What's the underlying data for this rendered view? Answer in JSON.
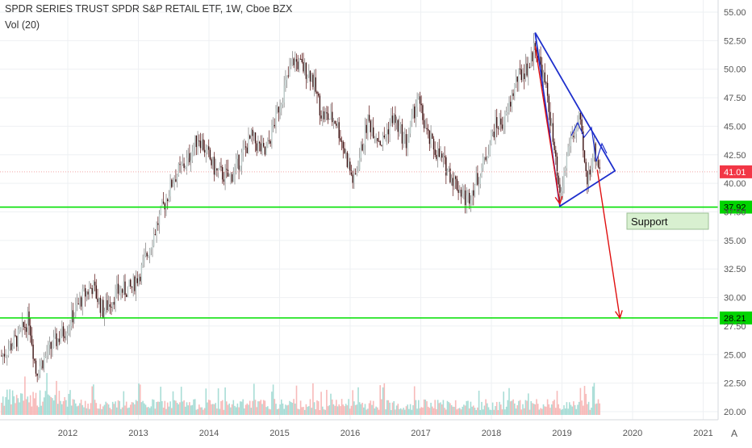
{
  "header": {
    "title": "SPDR SERIES TRUST SPDR S&P RETAIL ETF, 1W, Cboe BZX",
    "indicator": "Vol (20)"
  },
  "colors": {
    "up_candle": "#26a69a",
    "down_candle": "#ef5350",
    "volume_up": "#9fd9d2",
    "volume_down": "#f6b3b1",
    "support_line": "#00e000",
    "trend_lines": "#1e2fcc",
    "arrows": "#e01010",
    "price_badge": "#f23645",
    "support_badge": "#00d400",
    "support_label_bg": "#d8f0d0"
  },
  "chart_data": {
    "type": "candlestick",
    "x_axis": {
      "tick_labels": [
        "2012",
        "2013",
        "2014",
        "2015",
        "2016",
        "2017",
        "2018",
        "2019",
        "2020",
        "2021"
      ]
    },
    "y_axis": {
      "range": [
        19.5,
        55.8
      ],
      "tick_labels": [
        "55.00",
        "52.50",
        "50.00",
        "47.50",
        "45.00",
        "42.50",
        "40.00",
        "37.50",
        "35.00",
        "32.50",
        "30.00",
        "27.50",
        "25.00",
        "22.50",
        "20.00"
      ],
      "position": "right"
    },
    "price_path_weekly_close_approx": [
      {
        "date": "2011.0",
        "value": 24.5
      },
      {
        "date": "2011.3",
        "value": 26.5
      },
      {
        "date": "2011.45",
        "value": 28.2
      },
      {
        "date": "2011.55",
        "value": 23.5
      },
      {
        "date": "2011.75",
        "value": 25.5
      },
      {
        "date": "2012.0",
        "value": 27.5
      },
      {
        "date": "2012.2",
        "value": 30.0
      },
      {
        "date": "2012.35",
        "value": 31.0
      },
      {
        "date": "2012.5",
        "value": 28.8
      },
      {
        "date": "2012.7",
        "value": 30.5
      },
      {
        "date": "2012.9",
        "value": 30.8
      },
      {
        "date": "2013.05",
        "value": 32.5
      },
      {
        "date": "2013.3",
        "value": 37.0
      },
      {
        "date": "2013.5",
        "value": 40.5
      },
      {
        "date": "2013.7",
        "value": 42.0
      },
      {
        "date": "2013.85",
        "value": 44.2
      },
      {
        "date": "2014.1",
        "value": 41.0
      },
      {
        "date": "2014.3",
        "value": 40.5
      },
      {
        "date": "2014.6",
        "value": 44.0
      },
      {
        "date": "2014.8",
        "value": 42.5
      },
      {
        "date": "2015.0",
        "value": 47.0
      },
      {
        "date": "2015.2",
        "value": 50.8
      },
      {
        "date": "2015.45",
        "value": 49.5
      },
      {
        "date": "2015.6",
        "value": 46.0
      },
      {
        "date": "2015.8",
        "value": 45.5
      },
      {
        "date": "2016.05",
        "value": 40.0
      },
      {
        "date": "2016.25",
        "value": 45.5
      },
      {
        "date": "2016.45",
        "value": 43.5
      },
      {
        "date": "2016.6",
        "value": 45.8
      },
      {
        "date": "2016.8",
        "value": 43.5
      },
      {
        "date": "2016.95",
        "value": 47.5
      },
      {
        "date": "2017.1",
        "value": 44.0
      },
      {
        "date": "2017.3",
        "value": 42.0
      },
      {
        "date": "2017.5",
        "value": 40.0
      },
      {
        "date": "2017.65",
        "value": 38.5
      },
      {
        "date": "2017.85",
        "value": 41.0
      },
      {
        "date": "2018.05",
        "value": 45.0
      },
      {
        "date": "2018.2",
        "value": 45.5
      },
      {
        "date": "2018.35",
        "value": 49.0
      },
      {
        "date": "2018.55",
        "value": 50.5
      },
      {
        "date": "2018.62",
        "value": 52.3
      },
      {
        "date": "2018.8",
        "value": 47.5
      },
      {
        "date": "2018.97",
        "value": 38.5
      },
      {
        "date": "2019.1",
        "value": 43.5
      },
      {
        "date": "2019.25",
        "value": 45.5
      },
      {
        "date": "2019.35",
        "value": 40.0
      },
      {
        "date": "2019.45",
        "value": 43.0
      },
      {
        "date": "2019.55",
        "value": 41.01
      }
    ],
    "volume_bars": {
      "range": "low, ~20–23 in price-scale space",
      "note": "red/green translucent bars along bottom"
    },
    "horizontal_levels": [
      {
        "value": 37.92,
        "label": "37.92",
        "kind": "support-line"
      },
      {
        "value": 28.21,
        "label": "28.21",
        "kind": "support-line"
      },
      {
        "value": 41.01,
        "label": "41.01",
        "kind": "last-price"
      }
    ],
    "annotations": {
      "support_label": "Support",
      "triangle": [
        {
          "date": "2018.62",
          "value": 53.2
        },
        {
          "date": "2018.97",
          "value": 38.0
        },
        {
          "date": "2019.75",
          "value": 41.1
        }
      ],
      "arrow_down_1": {
        "from": {
          "date": "2018.62",
          "value": 52.0
        },
        "to": {
          "date": "2018.97",
          "value": 38.2
        }
      },
      "arrow_down_2": {
        "from": {
          "date": "2019.5",
          "value": 41.2
        },
        "to": {
          "date": "2019.82",
          "value": 28.2
        }
      }
    },
    "grid": true,
    "corner_button": "A"
  }
}
